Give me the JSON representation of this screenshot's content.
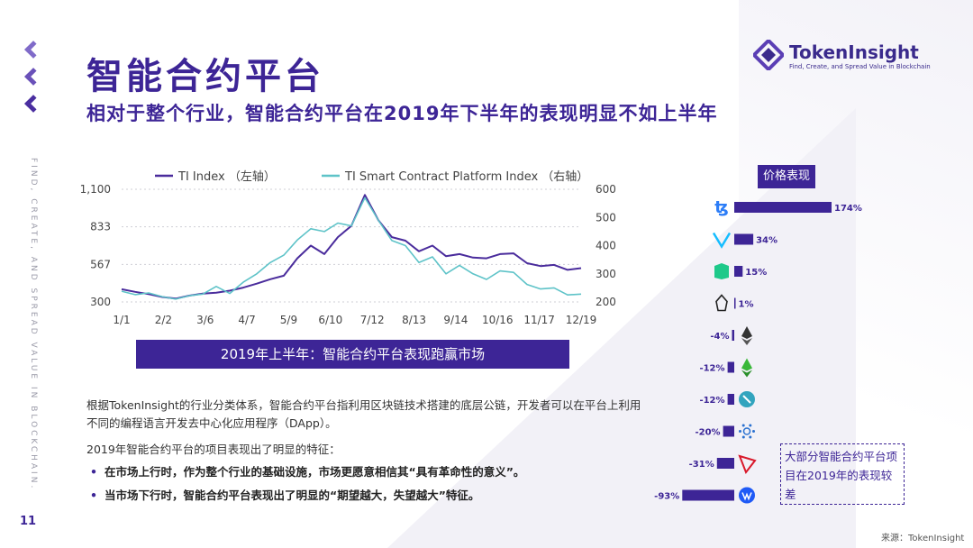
{
  "title": "智能合约平台",
  "subtitle": "相对于整个行业，智能合约平台在2019年下半年的表现明显不如上半年",
  "logo": {
    "name": "TokenInsight",
    "tagline": "Find, Create, and Spread Value in Blockchain"
  },
  "side_text": "FIND, CREATE, AND SPREAD VALUE IN BLOCKCHAIN.",
  "page_number": "11",
  "banner": "2019年上半年：智能合约平台表现跑赢市场",
  "description": "根据TokenInsight的行业分类体系，智能合约平台指利用区块链技术搭建的底层公链，开发者可以在平台上利用不同的编程语言开发去中心化应用程序（DApp）。",
  "features_heading": "2019年智能合约平台的项目表现出了明显的特征：",
  "bullets": [
    "在市场上行时，作为整个行业的基础设施，市场更愿意相信其“具有革命性的意义”。",
    "当市场下行时，智能合约平台表现出了明显的“期望越大，失望越大”特征。"
  ],
  "note": "大部分智能合约平台项目在2019年的表现较差",
  "source": "来源：TokenInsight",
  "colors": {
    "purple": "#3d2596",
    "teal": "#5ec3c8",
    "line_purple": "#4a2c9c"
  },
  "chart_data": [
    {
      "type": "line",
      "x_ticks": [
        "1/1",
        "2/2",
        "3/6",
        "4/7",
        "5/9",
        "6/10",
        "7/12",
        "8/13",
        "9/14",
        "10/16",
        "11/17",
        "12/19"
      ],
      "y_left_ticks": [
        "1,100",
        "833",
        "567",
        "300"
      ],
      "y_right_ticks": [
        "600",
        "500",
        "400",
        "300",
        "200"
      ],
      "ylim_left": [
        300,
        1100
      ],
      "ylim_right": [
        200,
        600
      ],
      "grid": "horizontal-dotted",
      "legend_position": "top",
      "series": [
        {
          "name": "TI Index （左轴）",
          "axis": "left",
          "color": "#4a2c9c",
          "values": [
            390,
            372,
            356,
            335,
            324,
            345,
            359,
            365,
            380,
            402,
            430,
            461,
            486,
            610,
            700,
            640,
            760,
            840,
            1060,
            880,
            760,
            735,
            660,
            700,
            625,
            640,
            615,
            610,
            640,
            645,
            575,
            555,
            563,
            528,
            540
          ]
        },
        {
          "name": "TI Smart Contract Platform Index （右轴）",
          "axis": "right",
          "color": "#5ec3c8",
          "values": [
            238,
            226,
            232,
            219,
            210,
            222,
            228,
            255,
            230,
            270,
            300,
            340,
            366,
            420,
            460,
            450,
            480,
            470,
            570,
            490,
            418,
            400,
            340,
            360,
            300,
            330,
            300,
            280,
            310,
            305,
            262,
            246,
            250,
            225,
            228
          ]
        }
      ]
    },
    {
      "type": "bar",
      "title": "价格表现",
      "categories": [
        "tezos-icon",
        "vechain-icon",
        "neo-icon",
        "eos-icon",
        "ethereum-icon",
        "ethereum-classic-icon",
        "ontology-icon",
        "cardano-icon",
        "tron-icon",
        "waves-icon"
      ],
      "values": [
        174,
        34,
        15,
        1,
        -4,
        -12,
        -12,
        -20,
        -31,
        -93
      ],
      "labels": [
        "174%",
        "34%",
        "15%",
        "1%",
        "-4%",
        "-12%",
        "-12%",
        "-20%",
        "-31%",
        "-93%"
      ]
    }
  ]
}
